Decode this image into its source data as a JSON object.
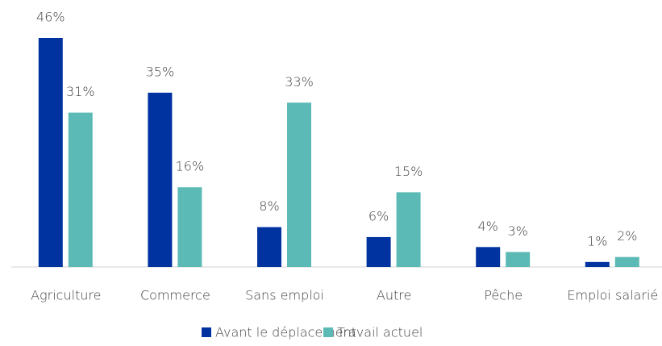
{
  "chart_data": {
    "type": "bar",
    "categories": [
      "Agriculture",
      "Commerce",
      "Sans emploi",
      "Autre",
      "Pêche",
      "Emploi salarié"
    ],
    "series": [
      {
        "name": "Avant le déplacement",
        "color": "#0033a0",
        "values": [
          46,
          35,
          8,
          6,
          4,
          1
        ],
        "value_labels": [
          "46%",
          "35%",
          "8%",
          "6%",
          "4%",
          "1%"
        ]
      },
      {
        "name": "Travail actuel",
        "color": "#5bbab5",
        "values": [
          31,
          16,
          33,
          15,
          3,
          2
        ],
        "value_labels": [
          "31%",
          "16%",
          "33%",
          "15%",
          "3%",
          "2%"
        ]
      }
    ],
    "legend": "bottom"
  }
}
